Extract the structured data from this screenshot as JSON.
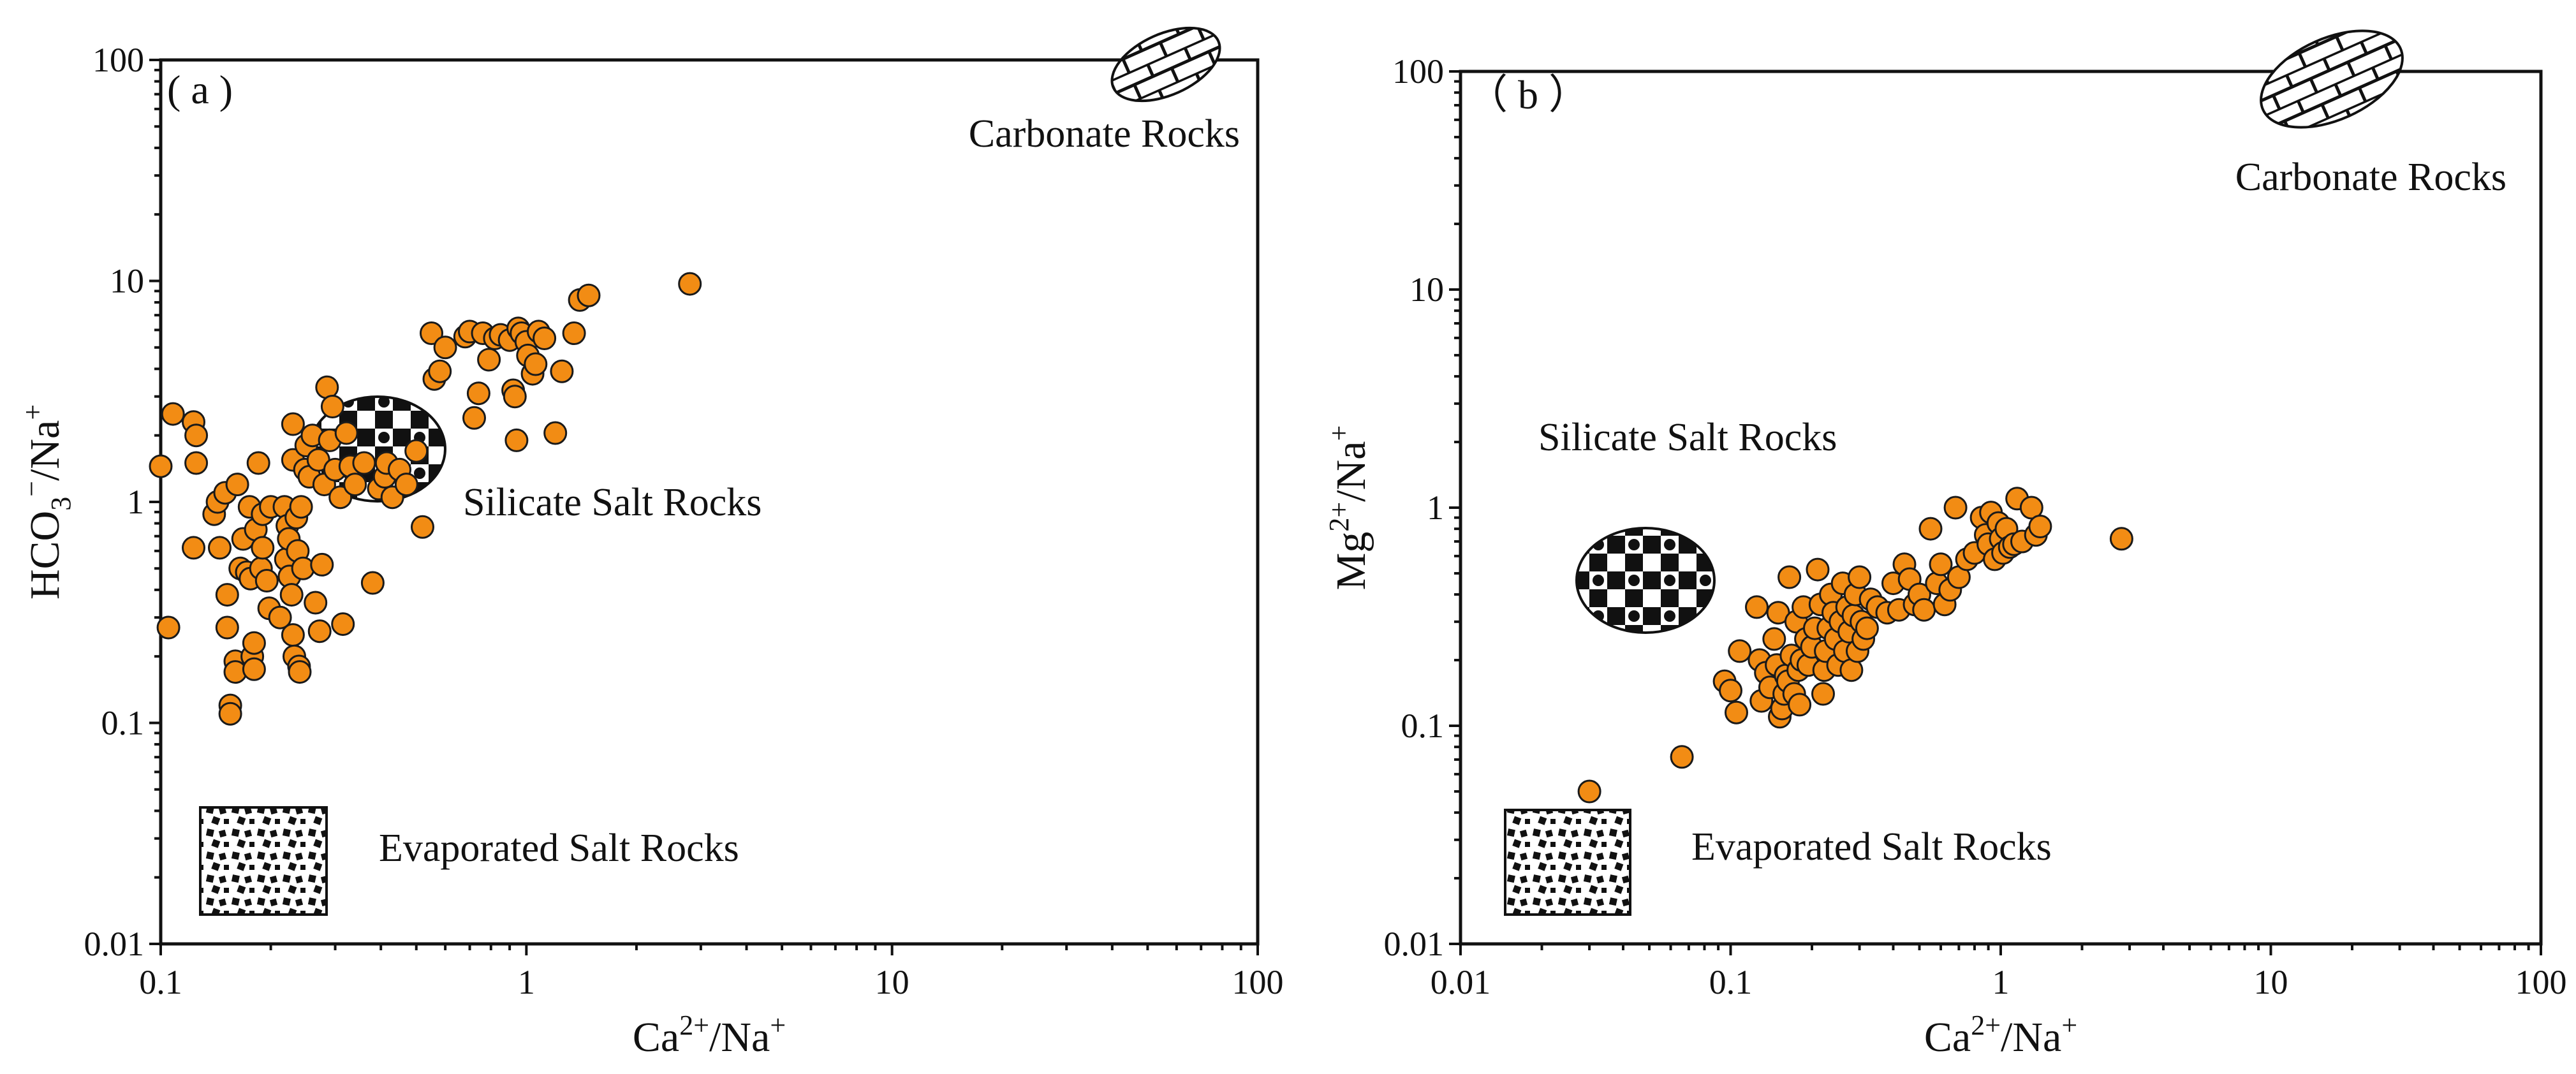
{
  "figure": {
    "point_color": "#F28C14",
    "edge_color": "#1a1a1a"
  },
  "chart_data": [
    {
      "type": "scatter",
      "panel_label": "( a )",
      "xscale": "log",
      "yscale": "log",
      "xlim": [
        0.1,
        100
      ],
      "ylim": [
        0.01,
        100
      ],
      "xticks": [
        "0.1",
        "1",
        "10",
        "100"
      ],
      "yticks": [
        "0.01",
        "0.1",
        "1",
        "10",
        "100"
      ],
      "xlabel": {
        "base": "Ca",
        "sup1": "2+",
        "mid": "/Na",
        "sup2": "+"
      },
      "ylabel": {
        "base": "HCO",
        "sub": "3",
        "sup1": "−",
        "mid": "/Na",
        "sup2": "+"
      },
      "regions": [
        {
          "name": "Carbonate Rocks",
          "pattern": "brick"
        },
        {
          "name": "Silicate Salt Rocks",
          "pattern": "checker"
        },
        {
          "name": "Evaporated Salt Rocks",
          "pattern": "dots"
        }
      ],
      "points": [
        [
          0.1,
          1.45
        ],
        [
          0.105,
          0.27
        ],
        [
          0.108,
          2.5
        ],
        [
          0.123,
          2.3
        ],
        [
          0.125,
          2.0
        ],
        [
          0.125,
          1.5
        ],
        [
          0.123,
          0.62
        ],
        [
          0.14,
          0.88
        ],
        [
          0.143,
          1.0
        ],
        [
          0.145,
          0.62
        ],
        [
          0.15,
          1.1
        ],
        [
          0.152,
          0.38
        ],
        [
          0.152,
          0.27
        ],
        [
          0.155,
          0.12
        ],
        [
          0.155,
          0.11
        ],
        [
          0.16,
          0.19
        ],
        [
          0.16,
          0.17
        ],
        [
          0.162,
          1.2
        ],
        [
          0.165,
          0.5
        ],
        [
          0.168,
          0.68
        ],
        [
          0.172,
          0.48
        ],
        [
          0.175,
          0.95
        ],
        [
          0.176,
          0.45
        ],
        [
          0.178,
          0.2
        ],
        [
          0.18,
          0.23
        ],
        [
          0.18,
          0.175
        ],
        [
          0.182,
          0.75
        ],
        [
          0.185,
          1.5
        ],
        [
          0.188,
          0.5
        ],
        [
          0.19,
          0.88
        ],
        [
          0.19,
          0.62
        ],
        [
          0.195,
          0.44
        ],
        [
          0.198,
          0.33
        ],
        [
          0.2,
          0.95
        ],
        [
          0.212,
          0.3
        ],
        [
          0.218,
          0.95
        ],
        [
          0.22,
          0.55
        ],
        [
          0.222,
          0.78
        ],
        [
          0.224,
          0.68
        ],
        [
          0.225,
          0.46
        ],
        [
          0.228,
          0.38
        ],
        [
          0.23,
          2.25
        ],
        [
          0.23,
          1.55
        ],
        [
          0.23,
          0.25
        ],
        [
          0.232,
          0.2
        ],
        [
          0.235,
          0.85
        ],
        [
          0.237,
          0.6
        ],
        [
          0.239,
          0.18
        ],
        [
          0.24,
          0.17
        ],
        [
          0.242,
          0.95
        ],
        [
          0.245,
          0.5
        ],
        [
          0.248,
          1.4
        ],
        [
          0.25,
          1.8
        ],
        [
          0.255,
          1.3
        ],
        [
          0.26,
          2.0
        ],
        [
          0.265,
          0.35
        ],
        [
          0.27,
          1.55
        ],
        [
          0.272,
          0.26
        ],
        [
          0.276,
          0.52
        ],
        [
          0.28,
          1.2
        ],
        [
          0.285,
          3.3
        ],
        [
          0.29,
          1.9
        ],
        [
          0.295,
          2.7
        ],
        [
          0.3,
          1.4
        ],
        [
          0.31,
          1.05
        ],
        [
          0.315,
          0.28
        ],
        [
          0.322,
          2.05
        ],
        [
          0.33,
          1.45
        ],
        [
          0.34,
          1.2
        ],
        [
          0.36,
          1.5
        ],
        [
          0.38,
          0.43
        ],
        [
          0.395,
          1.15
        ],
        [
          0.41,
          1.3
        ],
        [
          0.415,
          1.5
        ],
        [
          0.43,
          1.05
        ],
        [
          0.45,
          1.4
        ],
        [
          0.47,
          1.2
        ],
        [
          0.5,
          1.7
        ],
        [
          0.52,
          0.77
        ],
        [
          0.55,
          5.8
        ],
        [
          0.56,
          3.6
        ],
        [
          0.58,
          3.9
        ],
        [
          0.6,
          5.0
        ],
        [
          0.68,
          5.6
        ],
        [
          0.7,
          5.9
        ],
        [
          0.72,
          2.4
        ],
        [
          0.74,
          3.1
        ],
        [
          0.76,
          5.8
        ],
        [
          0.79,
          4.4
        ],
        [
          0.82,
          5.5
        ],
        [
          0.85,
          5.7
        ],
        [
          0.9,
          5.4
        ],
        [
          0.92,
          3.2
        ],
        [
          0.93,
          3.0
        ],
        [
          0.94,
          1.9
        ],
        [
          0.95,
          6.1
        ],
        [
          0.97,
          5.8
        ],
        [
          1.0,
          5.3
        ],
        [
          1.01,
          4.6
        ],
        [
          1.04,
          3.8
        ],
        [
          1.06,
          4.2
        ],
        [
          1.08,
          5.9
        ],
        [
          1.12,
          5.5
        ],
        [
          1.2,
          2.05
        ],
        [
          1.25,
          3.9
        ],
        [
          1.35,
          5.8
        ],
        [
          1.4,
          8.2
        ],
        [
          1.48,
          8.6
        ],
        [
          2.8,
          9.7
        ]
      ]
    },
    {
      "type": "scatter",
      "panel_label": "（ b ）",
      "xscale": "log",
      "yscale": "log",
      "xlim": [
        0.01,
        100
      ],
      "ylim": [
        0.01,
        100
      ],
      "xticks": [
        "0.01",
        "0.1",
        "1",
        "10",
        "100"
      ],
      "yticks": [
        "0.01",
        "0.1",
        "1",
        "10",
        "100"
      ],
      "xlabel": {
        "base": "Ca",
        "sup1": "2+",
        "mid": "/Na",
        "sup2": "+"
      },
      "ylabel": {
        "base": "Mg",
        "sup1": "2+",
        "mid": "/Na",
        "sup2": "+"
      },
      "regions": [
        {
          "name": "Carbonate Rocks",
          "pattern": "brick"
        },
        {
          "name": "Silicate Salt Rocks",
          "pattern": "checker"
        },
        {
          "name": "Evaporated Salt Rocks",
          "pattern": "dots"
        }
      ],
      "points": [
        [
          0.03,
          0.05
        ],
        [
          0.066,
          0.072
        ],
        [
          0.095,
          0.16
        ],
        [
          0.1,
          0.145
        ],
        [
          0.105,
          0.115
        ],
        [
          0.108,
          0.22
        ],
        [
          0.125,
          0.35
        ],
        [
          0.128,
          0.2
        ],
        [
          0.13,
          0.13
        ],
        [
          0.135,
          0.175
        ],
        [
          0.14,
          0.15
        ],
        [
          0.145,
          0.25
        ],
        [
          0.148,
          0.19
        ],
        [
          0.15,
          0.33
        ],
        [
          0.152,
          0.11
        ],
        [
          0.155,
          0.12
        ],
        [
          0.158,
          0.14
        ],
        [
          0.16,
          0.17
        ],
        [
          0.163,
          0.16
        ],
        [
          0.165,
          0.48
        ],
        [
          0.168,
          0.21
        ],
        [
          0.172,
          0.14
        ],
        [
          0.175,
          0.3
        ],
        [
          0.178,
          0.18
        ],
        [
          0.18,
          0.125
        ],
        [
          0.183,
          0.2
        ],
        [
          0.186,
          0.35
        ],
        [
          0.19,
          0.25
        ],
        [
          0.194,
          0.19
        ],
        [
          0.2,
          0.23
        ],
        [
          0.205,
          0.28
        ],
        [
          0.21,
          0.52
        ],
        [
          0.215,
          0.36
        ],
        [
          0.22,
          0.14
        ],
        [
          0.222,
          0.18
        ],
        [
          0.225,
          0.22
        ],
        [
          0.23,
          0.28
        ],
        [
          0.235,
          0.4
        ],
        [
          0.24,
          0.33
        ],
        [
          0.245,
          0.25
        ],
        [
          0.25,
          0.19
        ],
        [
          0.255,
          0.3
        ],
        [
          0.26,
          0.45
        ],
        [
          0.265,
          0.22
        ],
        [
          0.27,
          0.35
        ],
        [
          0.275,
          0.27
        ],
        [
          0.28,
          0.18
        ],
        [
          0.285,
          0.32
        ],
        [
          0.29,
          0.4
        ],
        [
          0.295,
          0.22
        ],
        [
          0.3,
          0.48
        ],
        [
          0.305,
          0.3
        ],
        [
          0.31,
          0.25
        ],
        [
          0.32,
          0.28
        ],
        [
          0.33,
          0.38
        ],
        [
          0.35,
          0.35
        ],
        [
          0.38,
          0.33
        ],
        [
          0.4,
          0.45
        ],
        [
          0.42,
          0.34
        ],
        [
          0.44,
          0.55
        ],
        [
          0.46,
          0.47
        ],
        [
          0.48,
          0.36
        ],
        [
          0.5,
          0.4
        ],
        [
          0.52,
          0.34
        ],
        [
          0.55,
          0.8
        ],
        [
          0.58,
          0.45
        ],
        [
          0.6,
          0.55
        ],
        [
          0.62,
          0.36
        ],
        [
          0.65,
          0.42
        ],
        [
          0.68,
          1.0
        ],
        [
          0.7,
          0.48
        ],
        [
          0.75,
          0.58
        ],
        [
          0.8,
          0.62
        ],
        [
          0.85,
          0.9
        ],
        [
          0.88,
          0.75
        ],
        [
          0.9,
          0.68
        ],
        [
          0.92,
          0.95
        ],
        [
          0.95,
          0.58
        ],
        [
          0.98,
          0.85
        ],
        [
          1.0,
          0.72
        ],
        [
          1.02,
          0.62
        ],
        [
          1.05,
          0.8
        ],
        [
          1.08,
          0.66
        ],
        [
          1.12,
          0.68
        ],
        [
          1.15,
          1.1
        ],
        [
          1.2,
          0.7
        ],
        [
          1.3,
          1.0
        ],
        [
          1.35,
          0.75
        ],
        [
          1.4,
          0.82
        ],
        [
          2.8,
          0.72
        ]
      ]
    }
  ]
}
